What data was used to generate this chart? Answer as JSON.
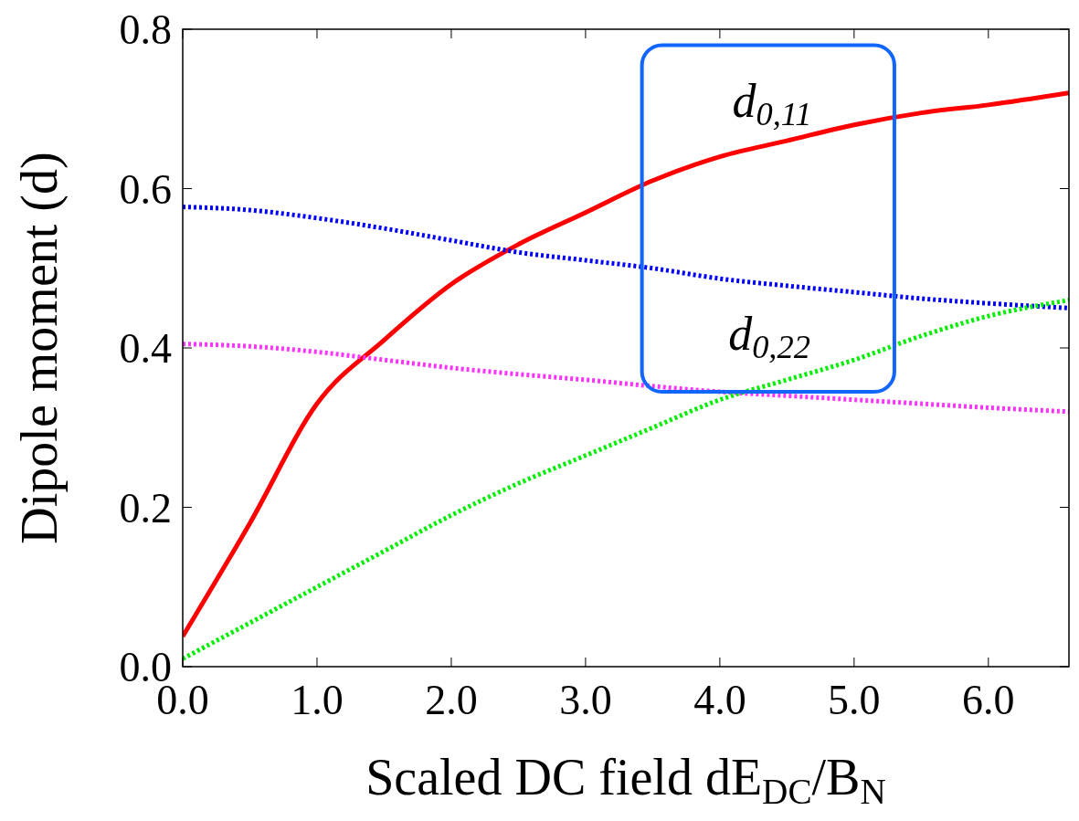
{
  "chart_data": {
    "type": "line",
    "xlabel": "Scaled DC field dE$_{DC}$/B$_{N}$",
    "ylabel": "Dipole moment (d)",
    "x": [
      0,
      0.5,
      1.0,
      1.5,
      2.0,
      2.5,
      3.0,
      3.5,
      4.0,
      4.5,
      5.0,
      5.5,
      6.0,
      6.6
    ],
    "series": [
      {
        "color": "#ff0000",
        "line_style": "solid",
        "values": [
          0.038,
          0.18,
          0.33,
          0.41,
          0.48,
          0.53,
          0.57,
          0.61,
          0.64,
          0.66,
          0.68,
          0.695,
          0.705,
          0.72
        ]
      },
      {
        "color": "#0000ff",
        "line_style": "dotted",
        "values": [
          0.577,
          0.573,
          0.563,
          0.55,
          0.535,
          0.52,
          0.51,
          0.5,
          0.487,
          0.478,
          0.47,
          0.462,
          0.456,
          0.45
        ]
      },
      {
        "color": "#ff33ff",
        "line_style": "dotted",
        "values": [
          0.405,
          0.402,
          0.395,
          0.385,
          0.375,
          0.367,
          0.36,
          0.352,
          0.345,
          0.34,
          0.335,
          0.33,
          0.325,
          0.32
        ]
      },
      {
        "color": "#00ee00",
        "line_style": "dotted",
        "values": [
          0.01,
          0.055,
          0.1,
          0.145,
          0.19,
          0.23,
          0.265,
          0.3,
          0.335,
          0.36,
          0.385,
          0.415,
          0.44,
          0.46
        ]
      }
    ],
    "xlim": [
      0,
      6.6
    ],
    "xticks": [
      {
        "value": 0,
        "label": "0.0"
      },
      {
        "value": 1,
        "label": "1.0"
      },
      {
        "value": 2,
        "label": "2.0"
      },
      {
        "value": 3,
        "label": "3.0"
      },
      {
        "value": 4,
        "label": "4.0"
      },
      {
        "value": 5,
        "label": "5.0"
      },
      {
        "value": 6,
        "label": "6.0"
      }
    ],
    "ylim": [
      0,
      0.8
    ],
    "yticks": [
      {
        "value": 0,
        "label": "0.0"
      },
      {
        "value": 0.2,
        "label": "0.2"
      },
      {
        "value": 0.4,
        "label": "0.4"
      },
      {
        "value": 0.6,
        "label": "0.6"
      },
      {
        "value": 0.8,
        "label": "0.8"
      }
    ],
    "annotations": [
      "d$_{0,11}$",
      "d$_{0,22}$"
    ],
    "grid": false
  }
}
